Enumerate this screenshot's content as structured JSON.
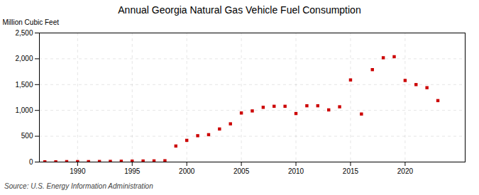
{
  "chart_data": {
    "type": "scatter",
    "title": "Annual Georgia Natural Gas Vehicle Fuel Consumption",
    "ylabel": "Million Cubic Feet",
    "source": "Source: U.S. Energy Information Administration",
    "x": [
      1987,
      1988,
      1989,
      1990,
      1991,
      1992,
      1993,
      1994,
      1995,
      1996,
      1997,
      1998,
      1999,
      2000,
      2001,
      2002,
      2003,
      2004,
      2005,
      2006,
      2007,
      2008,
      2009,
      2010,
      2011,
      2012,
      2013,
      2014,
      2015,
      2016,
      2017,
      2018,
      2019,
      2020,
      2021,
      2022,
      2023
    ],
    "values": [
      5,
      5,
      8,
      8,
      8,
      10,
      12,
      15,
      18,
      20,
      22,
      25,
      310,
      420,
      510,
      530,
      640,
      740,
      950,
      990,
      1060,
      1080,
      1080,
      940,
      1090,
      1090,
      1010,
      1070,
      1590,
      930,
      1790,
      2020,
      2040,
      1580,
      1500,
      1440,
      1190
    ],
    "color": "#cc0000",
    "marker": "square",
    "xlim": [
      1986.5,
      2025.5
    ],
    "xticks": [
      1990,
      1995,
      2000,
      2005,
      2010,
      2015,
      2020
    ],
    "ylim": [
      0,
      2500
    ],
    "yticks": [
      0,
      500,
      {
        "value": 1000,
        "label": "1,000"
      },
      {
        "value": 1500,
        "label": "1,500"
      },
      {
        "value": 2000,
        "label": "2,000"
      },
      {
        "value": 2500,
        "label": "2,500"
      }
    ],
    "grid": true
  }
}
